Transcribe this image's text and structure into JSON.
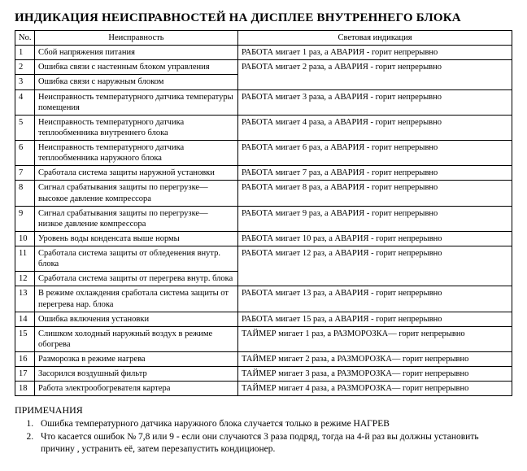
{
  "title": "ИНДИКАЦИЯ НЕИСПРАВНОСТЕЙ НА ДИСПЛЕЕ ВНУТРЕННЕГО БЛОКА",
  "table": {
    "headers": {
      "no": "No.",
      "fault": "Неисправность",
      "indication": "Световая индикация"
    },
    "rows": [
      {
        "no": "1",
        "fault": "Сбой напряжения питания",
        "indication": "РАБОТА мигает 1 раз, а АВАРИЯ  - горит непрерывно"
      },
      {
        "no": "2",
        "fault": "Ошибка связи с настенным блоком управления",
        "indication": "РАБОТА мигает 2 раза, а АВАРИЯ  - горит непрерывно",
        "ind_rowspan": 2
      },
      {
        "no": "3",
        "fault": "Ошибка связи с наружным блоком"
      },
      {
        "no": "4",
        "fault": "Неисправность температурного датчика температуры помещения",
        "indication": "РАБОТА мигает 3 раза, а АВАРИЯ  - горит непрерывно"
      },
      {
        "no": "5",
        "fault": "Неисправность температурного датчика теплообменника внутреннего блока",
        "indication": "РАБОТА мигает 4 раза, а АВАРИЯ  - горит непрерывно"
      },
      {
        "no": "6",
        "fault": "Неисправность температурного датчика теплообменника наружного блока",
        "indication": "РАБОТА мигает 6 раз, а АВАРИЯ  - горит непрерывно"
      },
      {
        "no": "7",
        "fault": "Сработала система защиты наружной установки",
        "indication": "РАБОТА мигает 7 раз, а АВАРИЯ  - горит непрерывно"
      },
      {
        "no": "8",
        "fault": "Сигнал срабатывания защиты по перегрузке— высокое давление компрессора",
        "indication": "РАБОТА мигает 8 раз, а АВАРИЯ  - горит непрерывно"
      },
      {
        "no": "9",
        "fault": "Сигнал срабатывания защиты по перегрузке— низкое давление компрессора",
        "indication": "РАБОТА мигает 9 раз, а АВАРИЯ  - горит непрерывно"
      },
      {
        "no": "10",
        "fault": "Уровень воды конденсата выше нормы",
        "indication": "РАБОТА мигает 10 раз, а АВАРИЯ  - горит непрерывно"
      },
      {
        "no": "11",
        "fault": "Сработала система защиты от обледенения внутр. блока",
        "indication": "РАБОТА мигает 12 раз, а АВАРИЯ  - горит непрерывно",
        "ind_rowspan": 2
      },
      {
        "no": "12",
        "fault": "Сработала система защиты от перегрева  внутр. блока"
      },
      {
        "no": "13",
        "fault": "В режиме охлаждения сработала система защиты от перегрева  нар. блока",
        "indication": "РАБОТА мигает 13 раз, а АВАРИЯ  - горит непрерывно"
      },
      {
        "no": "14",
        "fault": "Ошибка включения установки",
        "indication": "РАБОТА мигает 15 раз, а АВАРИЯ  - горит непрерывно"
      },
      {
        "no": "15",
        "fault": "Слишком холодный наружный воздух в режиме обогрева",
        "indication": "ТАЙМЕР мигает 1 раз, а РАЗМОРОЗКА— горит непрерывно"
      },
      {
        "no": "16",
        "fault": "Разморозка в режиме нагрева",
        "indication": "ТАЙМЕР мигает 2 раза, а РАЗМОРОЗКА— горит непрерывно"
      },
      {
        "no": "17",
        "fault": "Засорился воздушный фильтр",
        "indication": "ТАЙМЕР мигает 3 раза, а РАЗМОРОЗКА— горит непрерывно"
      },
      {
        "no": "18",
        "fault": "Работа электрообогревателя картера",
        "indication": "ТАЙМЕР мигает 4 раза, а РАЗМОРОЗКА— горит непрерывно"
      }
    ]
  },
  "notes": {
    "heading": "ПРИМЕЧАНИЯ",
    "items": [
      "Ошибка температурного датчика наружного блока случается только в режиме НАГРЕВ",
      "Что касается ошибок № 7,8 или 9  - если они случаются 3 раза подряд, тогда на 4-й раз вы должны установить причину , устранить её, затем перезапустить кондиционер."
    ]
  }
}
